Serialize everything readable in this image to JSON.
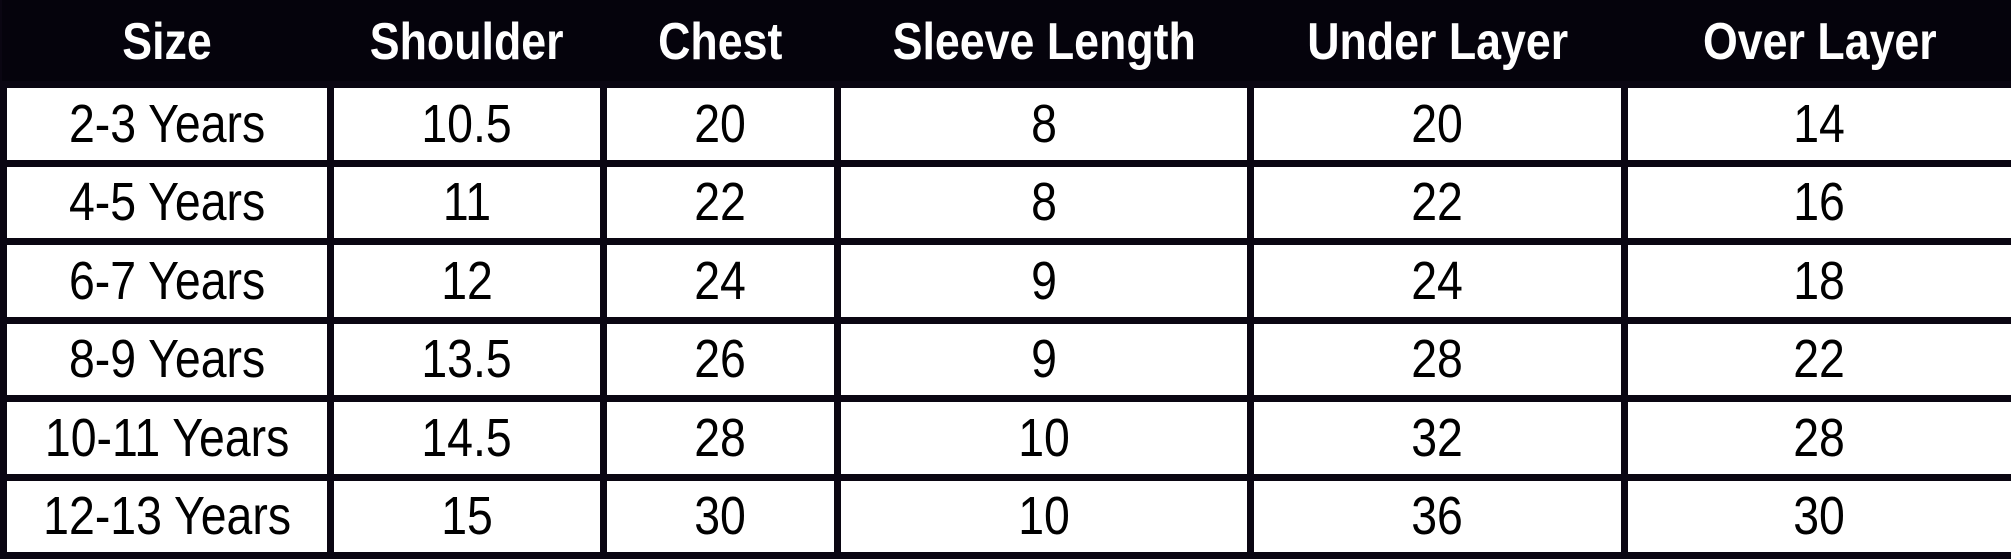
{
  "table": {
    "headers": [
      "Size",
      "Shoulder",
      "Chest",
      "Sleeve Length",
      "Under Layer",
      "Over Layer"
    ],
    "rows": [
      [
        "2-3 Years",
        "10.5",
        "20",
        "8",
        "20",
        "14"
      ],
      [
        "4-5 Years",
        "11",
        "22",
        "8",
        "22",
        "16"
      ],
      [
        "6-7 Years",
        "12",
        "24",
        "9",
        "24",
        "18"
      ],
      [
        "8-9 Years",
        "13.5",
        "26",
        "9",
        "28",
        "22"
      ],
      [
        "10-11 Years",
        "14.5",
        "28",
        "10",
        "32",
        "28"
      ],
      [
        "12-13 Years",
        "15",
        "30",
        "10",
        "36",
        "30"
      ]
    ]
  },
  "colors": {
    "header_bg": "#05030c",
    "header_text": "#ffffff",
    "grid": "#0a0612"
  }
}
